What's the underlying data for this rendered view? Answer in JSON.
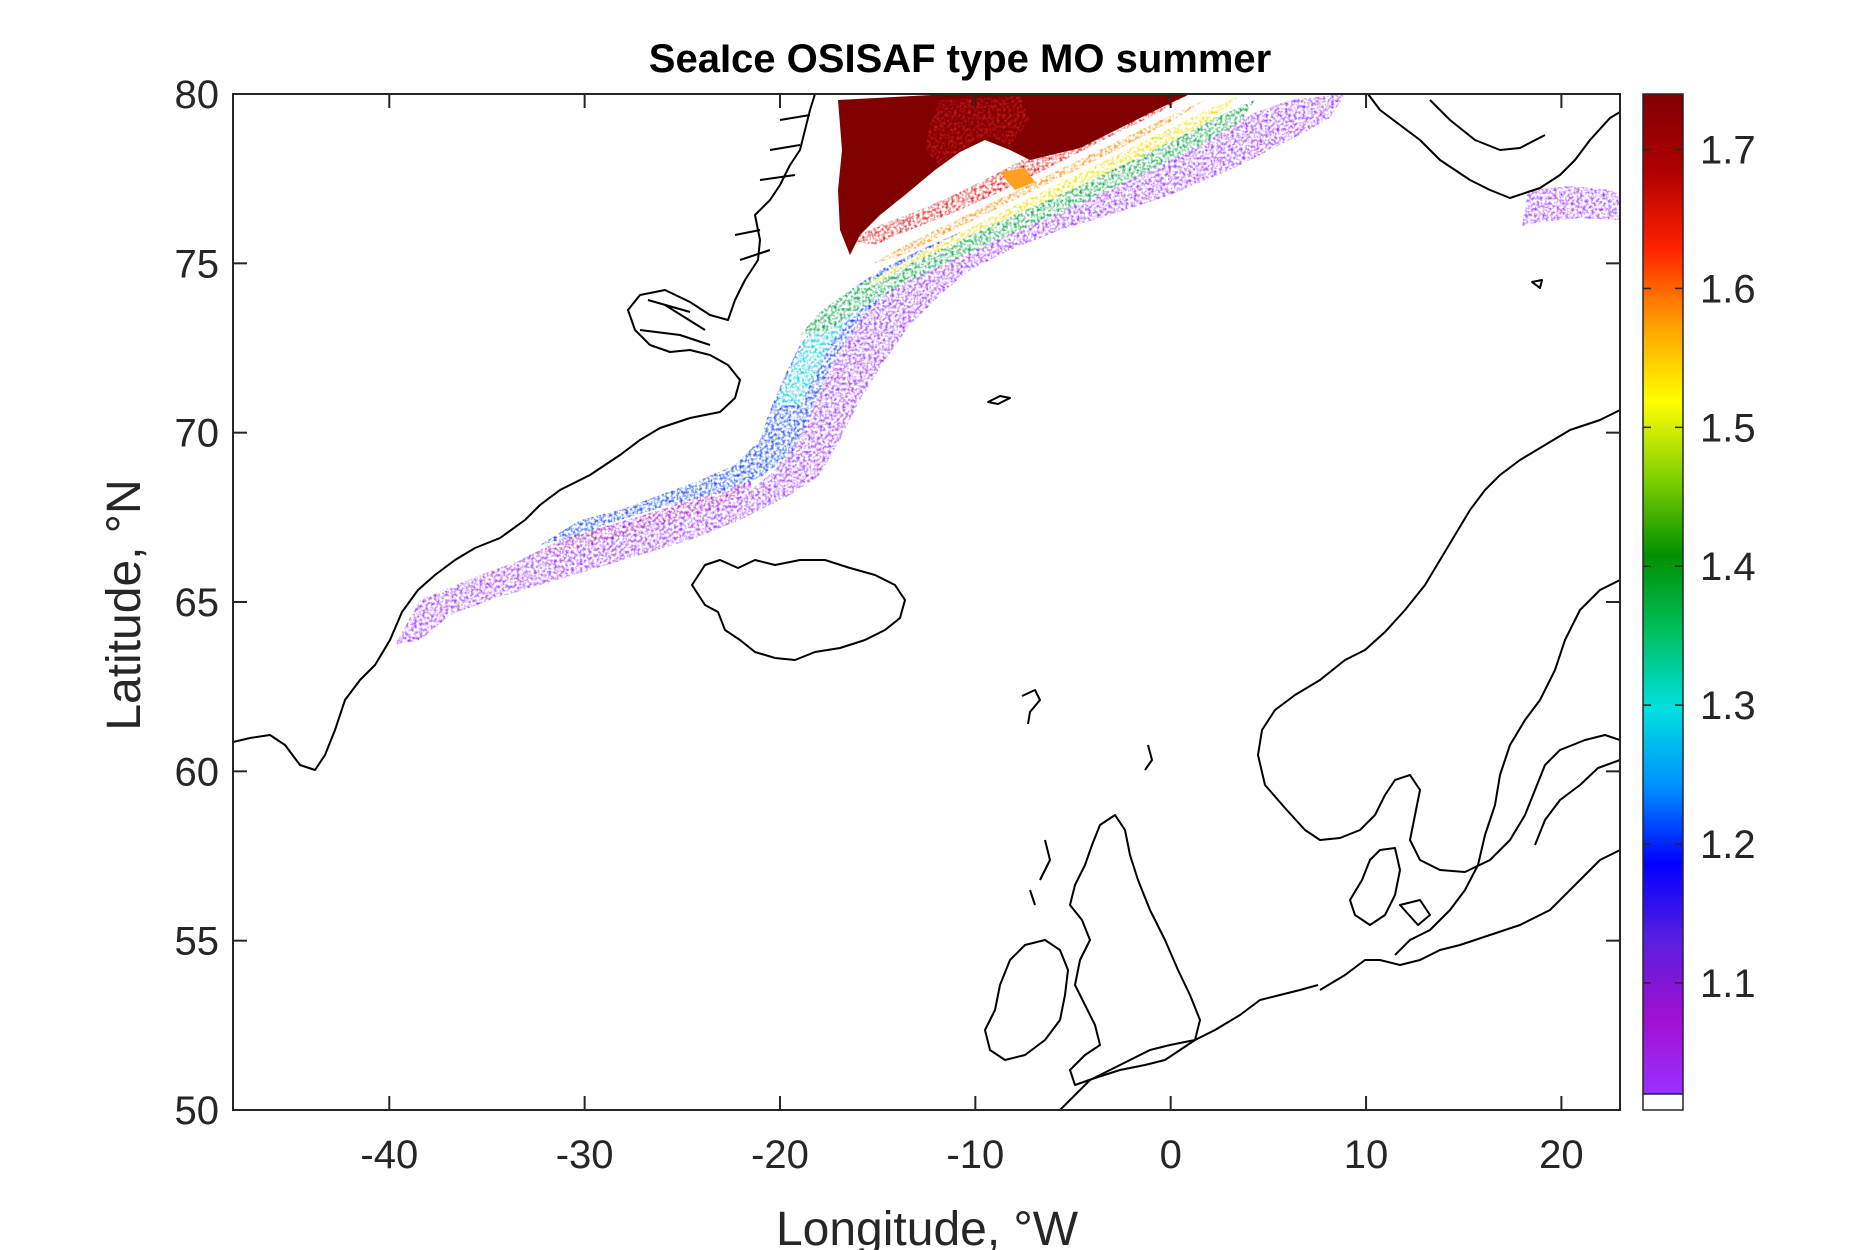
{
  "chart_data": {
    "type": "heatmap",
    "title": "SeaIce OSISAF type MO summer",
    "xlabel": "Longitude, °W",
    "ylabel": "Latitude, °N",
    "xlim": [
      -48,
      23
    ],
    "ylim": [
      50,
      80
    ],
    "x_ticks": [
      -40,
      -30,
      -20,
      -10,
      0,
      10,
      20
    ],
    "y_ticks": [
      50,
      55,
      60,
      65,
      70,
      75,
      80
    ],
    "x_tick_labels": [
      "-40",
      "-30",
      "-20",
      "-10",
      "0",
      "10",
      "20"
    ],
    "y_tick_labels": [
      "50",
      "55",
      "60",
      "65",
      "70",
      "75",
      "80"
    ],
    "colorbar": {
      "range": [
        1.02,
        1.74
      ],
      "ticks": [
        1.1,
        1.2,
        1.3,
        1.4,
        1.5,
        1.6,
        1.7
      ],
      "tick_labels": [
        "1.1",
        "1.2",
        "1.3",
        "1.4",
        "1.5",
        "1.6",
        "1.7"
      ],
      "colormap": "jet-like (purple-blue-cyan-green-yellow-red-darkred)",
      "colormap_stops": [
        "#9b30ff",
        "#a010d0",
        "#5a1ee0",
        "#0000ff",
        "#0090ff",
        "#00e0e0",
        "#00c060",
        "#009000",
        "#80d000",
        "#ffff00",
        "#ffa000",
        "#ff2000",
        "#b00000",
        "#800000"
      ]
    },
    "grid": false,
    "ice_band": [
      {
        "lon": -39,
        "lat": 64.8,
        "value": 1.08
      },
      {
        "lon": -36,
        "lat": 65.6,
        "value": 1.15
      },
      {
        "lon": -33,
        "lat": 66.6,
        "value": 1.22
      },
      {
        "lon": -29,
        "lat": 67.3,
        "value": 1.15
      },
      {
        "lon": -25,
        "lat": 68.3,
        "value": 1.12
      },
      {
        "lon": -22,
        "lat": 69.5,
        "value": 1.12
      },
      {
        "lon": -20,
        "lat": 71.0,
        "value": 1.25
      },
      {
        "lon": -19,
        "lat": 72.5,
        "value": 1.3
      },
      {
        "lon": -17,
        "lat": 74.0,
        "value": 1.4
      },
      {
        "lon": -14,
        "lat": 75.0,
        "value": 1.5
      },
      {
        "lon": -10,
        "lat": 75.8,
        "value": 1.55
      },
      {
        "lon": -14,
        "lat": 77.0,
        "value": 1.74
      },
      {
        "lon": -14,
        "lat": 79.0,
        "value": 1.74
      },
      {
        "lon": -6,
        "lat": 78.5,
        "value": 1.65
      },
      {
        "lon": -3,
        "lat": 77.8,
        "value": 1.5
      },
      {
        "lon": 0,
        "lat": 79.5,
        "value": 1.7
      },
      {
        "lon": 4,
        "lat": 79.0,
        "value": 1.3
      },
      {
        "lon": 20,
        "lat": 76.7,
        "value": 1.05
      }
    ]
  }
}
